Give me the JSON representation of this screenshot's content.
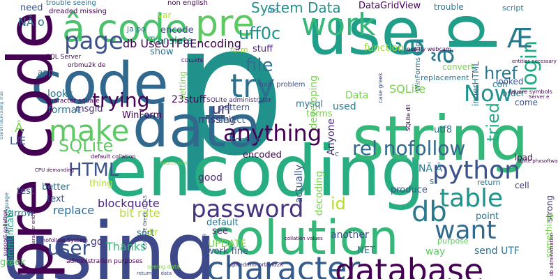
{
  "colors": {
    "background": "#ffffff",
    "palette": [
      "#440154",
      "#3b528b",
      "#21918c",
      "#5ec962",
      "#fde725"
    ]
  },
  "words": [
    {
      "text": "p",
      "color": "#21918c"
    },
    {
      "text": "using",
      "color": "#3e4989"
    },
    {
      "text": "encoding",
      "color": "#27ad81"
    },
    {
      "text": "string",
      "color": "#35b779"
    },
    {
      "text": "use",
      "color": "#1f9e89"
    },
    {
      "text": "p",
      "color": "#1f9e89"
    },
    {
      "text": "code",
      "color": "#31688e"
    },
    {
      "text": "solution",
      "color": "#35b779"
    },
    {
      "text": "data",
      "color": "#31688e"
    },
    {
      "text": "pre code",
      "color": "#440154"
    },
    {
      "text": "character",
      "color": "#365c8d"
    },
    {
      "text": "database",
      "color": "#440154"
    },
    {
      "text": "â code",
      "color": "#4ac16d"
    },
    {
      "text": "pre",
      "color": "#5ec962"
    },
    {
      "text": "make",
      "color": "#5ec962"
    },
    {
      "text": "work",
      "color": "#35b779"
    },
    {
      "text": "page",
      "color": "#3b528b"
    },
    {
      "text": "db",
      "color": "#2a788e"
    },
    {
      "text": "password",
      "color": "#46337e"
    },
    {
      "text": "want",
      "color": "#31688e"
    },
    {
      "text": "python",
      "color": "#3b528b"
    },
    {
      "text": "try",
      "color": "#2d708e"
    },
    {
      "text": "table",
      "color": "#21918c"
    },
    {
      "text": "anything",
      "color": "#440154"
    },
    {
      "text": "Now",
      "color": "#21918c"
    },
    {
      "text": "ã",
      "color": "#23888e"
    },
    {
      "text": "ã",
      "color": "#2a788e"
    },
    {
      "text": "file",
      "color": "#2c728e"
    },
    {
      "text": "trying",
      "color": "#440154"
    },
    {
      "text": "SQLite",
      "color": "#5ec962"
    },
    {
      "text": "HTML",
      "color": "#3b528b"
    },
    {
      "text": "user",
      "color": "#3b528b"
    },
    {
      "text": "rel nofollow",
      "color": "#31688e"
    },
    {
      "text": "uff0c",
      "color": "#21918c"
    },
    {
      "text": "href",
      "color": "#2a788e"
    },
    {
      "text": "login",
      "color": "#22a884"
    },
    {
      "text": "tried",
      "color": "#22a884"
    },
    {
      "text": "Æ",
      "color": "#2a788e"
    },
    {
      "text": "url",
      "color": "#46337e"
    },
    {
      "text": "id",
      "color": "#b5de2b"
    },
    {
      "text": "System Data",
      "color": "#21918c"
    },
    {
      "text": "DataGridView",
      "color": "#440154"
    },
    {
      "text": "blockquote",
      "color": "#482878"
    },
    {
      "text": "bit rate",
      "color": "#b5de2b"
    },
    {
      "text": "Translate",
      "color": "#22a884"
    },
    {
      "text": "replace",
      "color": "#31688e"
    },
    {
      "text": "UPDATE",
      "color": "#7ad151"
    },
    {
      "text": "Thanks",
      "color": "#35b779"
    },
    {
      "text": "NÃ o",
      "color": "#2c728e"
    },
    {
      "text": "need",
      "color": "#3b528b"
    },
    {
      "text": "function",
      "color": "#a0da39"
    },
    {
      "text": "convert",
      "color": "#7ad151"
    },
    {
      "text": "looked",
      "color": "#3b528b"
    },
    {
      "text": "come",
      "color": "#3b528b"
    },
    {
      "text": "order",
      "color": "#2a788e"
    },
    {
      "text": "script",
      "color": "#2a788e"
    },
    {
      "text": "trouble",
      "color": "#2a788e"
    },
    {
      "text": "format",
      "color": "#2c728e"
    },
    {
      "text": "looks",
      "color": "#2c728e"
    },
    {
      "text": "WinForm",
      "color": "#440154"
    },
    {
      "text": "encode",
      "color": "#3e4989"
    },
    {
      "text": "ja po",
      "color": "#2c728e"
    },
    {
      "text": "show",
      "color": "#2c728e"
    },
    {
      "text": "form",
      "color": "#a0da39"
    },
    {
      "text": "stuff",
      "color": "#482878"
    },
    {
      "text": "23stuff",
      "color": "#440154"
    },
    {
      "text": "missing",
      "color": "#46337e"
    },
    {
      "text": "pattern",
      "color": "#3b528b"
    },
    {
      "text": "msgid",
      "color": "#482878"
    },
    {
      "text": "select",
      "color": "#31688e"
    },
    {
      "text": "contain",
      "color": "#2c728e"
    },
    {
      "text": "encoded",
      "color": "#440154"
    },
    {
      "text": "Data",
      "color": "#7ad151"
    },
    {
      "text": "SQLite",
      "color": "#7ad151"
    },
    {
      "text": "innerHTML",
      "color": "#2c728e"
    },
    {
      "text": "utf8",
      "color": "#31688e"
    },
    {
      "text": "load",
      "color": "#440154"
    },
    {
      "text": "cell",
      "color": "#46337e"
    },
    {
      "text": "return",
      "color": "#2c728e"
    },
    {
      "text": "produce",
      "color": "#3b528b"
    },
    {
      "text": "point",
      "color": "#2a788e"
    },
    {
      "text": "default",
      "color": "#2c728e"
    },
    {
      "text": "see",
      "color": "#482878"
    },
    {
      "text": "go",
      "color": "#46337e"
    },
    {
      "text": "work fine",
      "color": "#3b528b"
    },
    {
      "text": "another",
      "color": "#3b528b"
    },
    {
      "text": "way",
      "color": "#5ec962"
    },
    {
      "text": "send UTF",
      "color": "#2c728e"
    },
    {
      "text": "NET",
      "color": "#2c728e"
    },
    {
      "text": "purpose",
      "color": "#5ec962"
    },
    {
      "text": "greek",
      "color": "#5ec962"
    },
    {
      "text": "Anyone",
      "color": "#482878"
    },
    {
      "text": "good",
      "color": "#482878"
    },
    {
      "text": "decoding",
      "color": "#7ad151"
    },
    {
      "text": "actually",
      "color": "#3b528b"
    },
    {
      "text": "text",
      "color": "#3b528b"
    },
    {
      "text": "test",
      "color": "#3b528b"
    },
    {
      "text": "better",
      "color": "#2c728e"
    },
    {
      "text": "thing",
      "color": "#b5de2b"
    },
    {
      "text": "sort",
      "color": "#2c728e"
    },
    {
      "text": "arrow",
      "color": "#2c728e"
    },
    {
      "text": "dir",
      "color": "#b5de2b"
    },
    {
      "text": "res",
      "color": "#2c728e"
    },
    {
      "text": "con",
      "color": "#2a788e"
    },
    {
      "text": "mysql",
      "color": "#2c728e"
    },
    {
      "text": "terms",
      "color": "#7ad151"
    },
    {
      "text": "used",
      "color": "#2a788e"
    },
    {
      "text": "developing",
      "color": "#7ad151"
    },
    {
      "text": "setting",
      "color": "#7ad151"
    },
    {
      "text": "communicate",
      "color": "#22a884"
    },
    {
      "text": "LÆ",
      "color": "#3b528b"
    },
    {
      "text": "strong",
      "color": "#46337e"
    },
    {
      "text": "something",
      "color": "#7ad151"
    },
    {
      "text": "var",
      "color": "#b5de2b"
    },
    {
      "text": "Â",
      "color": "#7ad151"
    },
    {
      "text": "NÃ Â",
      "color": "#2c728e"
    },
    {
      "text": "s",
      "color": "#2c728e"
    },
    {
      "text": "c",
      "color": "#2c728e"
    },
    {
      "text": "app",
      "color": "#2c728e"
    },
    {
      "text": "non english",
      "color": "#440154"
    },
    {
      "text": "trouble seeing",
      "color": "#2c728e"
    },
    {
      "text": "main problem",
      "color": "#3b528b"
    },
    {
      "text": "replacement",
      "color": "#2c728e"
    },
    {
      "text": "WinForms app",
      "color": "#2c728e"
    },
    {
      "text": "Source test",
      "color": "#7ad151"
    },
    {
      "text": "dreaded missing",
      "color": "#440154"
    },
    {
      "text": "orbmu2k de",
      "color": "#440154"
    },
    {
      "text": "administration purposes",
      "color": "#440154"
    },
    {
      "text": "sqlitedmin orbmu2k",
      "color": "#482878"
    },
    {
      "text": "SQLite administrator",
      "color": "#482878"
    },
    {
      "text": "seeing data",
      "color": "#7ad151"
    },
    {
      "text": "nofollow System",
      "color": "#440154"
    },
    {
      "text": "default collation",
      "color": "#440154"
    },
    {
      "text": "returning data",
      "color": "#3b528b"
    },
    {
      "text": "SQL Server",
      "color": "#440154"
    },
    {
      "text": "UseUTF8Encoding True",
      "color": "#2c728e"
    },
    {
      "text": "english language",
      "color": "#2c728e"
    },
    {
      "text": "CPU demanding",
      "color": "#440154"
    },
    {
      "text": "COLLATE",
      "color": "#440154"
    },
    {
      "text": "connection string",
      "color": "#3b528b"
    },
    {
      "text": "COLLATE Greek_CI_AS",
      "color": "#3b528b"
    },
    {
      "text": "case greek",
      "color": "#3b528b"
    },
    {
      "text": "collation values",
      "color": "#440154"
    },
    {
      "text": "db administration",
      "color": "#440154"
    },
    {
      "text": "SQLite dll",
      "color": "#440154"
    },
    {
      "text": "character square",
      "color": "#440154"
    },
    {
      "text": "support collation",
      "color": "#440154"
    },
    {
      "text": "sqlite phxsoftware",
      "color": "#440154"
    },
    {
      "text": "Server e",
      "color": "#440154"
    },
    {
      "text": "square symbols",
      "color": "#440154"
    },
    {
      "text": "entities necessary",
      "color": "#440154"
    },
    {
      "text": "quality webcam",
      "color": "#440154"
    },
    {
      "text": "character entities",
      "color": "#440154"
    },
    {
      "text": "db UseUTF8Encoding",
      "color": "#440154"
    },
    {
      "text": "à",
      "color": "#22a884"
    }
  ]
}
